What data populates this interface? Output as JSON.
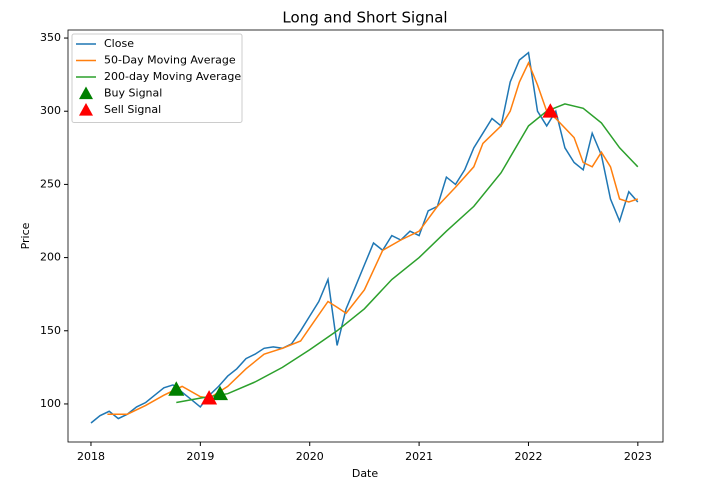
{
  "chart_data": {
    "type": "line",
    "title": "Long and Short Signal",
    "x_label": "Date",
    "y_label": "Price",
    "xlim": [
      2017.79,
      2023.23
    ],
    "xticks": [
      2018,
      2019,
      2020,
      2021,
      2022,
      2023
    ],
    "ylim": [
      74,
      355.5
    ],
    "yticks": [
      100,
      150,
      200,
      250,
      300,
      350
    ],
    "legend": "upper left",
    "series": [
      {
        "name": "Close",
        "kind": "line",
        "color": "#1f77b4",
        "x": [
          2018.0,
          2018.083,
          2018.167,
          2018.25,
          2018.333,
          2018.417,
          2018.5,
          2018.583,
          2018.667,
          2018.75,
          2018.833,
          2018.917,
          2019.0,
          2019.083,
          2019.167,
          2019.25,
          2019.333,
          2019.417,
          2019.5,
          2019.583,
          2019.667,
          2019.75,
          2019.833,
          2019.917,
          2020.0,
          2020.083,
          2020.167,
          2020.25,
          2020.333,
          2020.417,
          2020.5,
          2020.583,
          2020.667,
          2020.75,
          2020.833,
          2020.917,
          2021.0,
          2021.083,
          2021.167,
          2021.25,
          2021.333,
          2021.417,
          2021.5,
          2021.583,
          2021.667,
          2021.75,
          2021.833,
          2021.917,
          2022.0,
          2022.083,
          2022.167,
          2022.25,
          2022.333,
          2022.417,
          2022.5,
          2022.583,
          2022.667,
          2022.75,
          2022.833,
          2022.917,
          2023.0
        ],
        "values": [
          87,
          92,
          95,
          90,
          93,
          98,
          101,
          106,
          111,
          113,
          108,
          103,
          98,
          106,
          112,
          119,
          124,
          131,
          134,
          138,
          139,
          138,
          141,
          150,
          160,
          170,
          185,
          140,
          165,
          180,
          195,
          210,
          205,
          215,
          212,
          218,
          215,
          232,
          235,
          255,
          250,
          260,
          275,
          285,
          295,
          290,
          320,
          335,
          340,
          300,
          290,
          300,
          275,
          265,
          260,
          285,
          270,
          240,
          225,
          245,
          238
        ]
      },
      {
        "name": "50-Day Moving Average",
        "kind": "line",
        "color": "#ff7f0e",
        "x": [
          2018.15,
          2018.333,
          2018.5,
          2018.667,
          2018.833,
          2019.0,
          2019.083,
          2019.25,
          2019.417,
          2019.583,
          2019.75,
          2019.917,
          2020.0,
          2020.167,
          2020.25,
          2020.333,
          2020.5,
          2020.667,
          2020.833,
          2021.0,
          2021.167,
          2021.333,
          2021.5,
          2021.583,
          2021.75,
          2021.833,
          2021.917,
          2022.0,
          2022.083,
          2022.167,
          2022.25,
          2022.417,
          2022.5,
          2022.583,
          2022.667,
          2022.75,
          2022.833,
          2022.917,
          2023.0
        ],
        "values": [
          93,
          93,
          99,
          106,
          112,
          105,
          104,
          112,
          124,
          134,
          138,
          143,
          152,
          170,
          166,
          162,
          178,
          205,
          212,
          218,
          235,
          248,
          262,
          278,
          290,
          300,
          320,
          333,
          318,
          300,
          295,
          282,
          265,
          262,
          272,
          262,
          240,
          238,
          240
        ]
      },
      {
        "name": "200-day Moving Average",
        "kind": "line",
        "color": "#2ca02c",
        "x": [
          2018.78,
          2019.0,
          2019.25,
          2019.5,
          2019.75,
          2020.0,
          2020.25,
          2020.5,
          2020.75,
          2021.0,
          2021.25,
          2021.5,
          2021.75,
          2022.0,
          2022.167,
          2022.333,
          2022.5,
          2022.667,
          2022.833,
          2023.0
        ],
        "values": [
          101,
          104,
          107,
          115,
          125,
          137,
          150,
          165,
          185,
          200,
          218,
          235,
          258,
          290,
          300,
          305,
          302,
          292,
          275,
          262
        ]
      },
      {
        "name": "Buy Signal",
        "kind": "scatter",
        "marker": "triangle",
        "color": "#008000",
        "x": [
          2018.78,
          2019.18
        ],
        "values": [
          110,
          107
        ]
      },
      {
        "name": "Sell Signal",
        "kind": "scatter",
        "marker": "triangle",
        "color": "#ff0000",
        "x": [
          2019.08,
          2022.2
        ],
        "values": [
          104,
          300
        ]
      }
    ]
  }
}
